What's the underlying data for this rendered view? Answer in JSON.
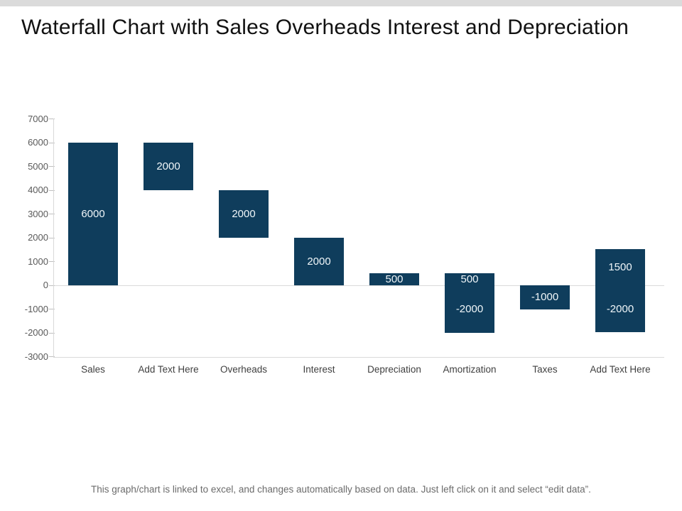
{
  "page": {
    "title": "Waterfall Chart with Sales Overheads Interest and Depreciation",
    "footer_note": "This graph/chart is linked to excel, and changes automatically based on data. Just left click on it and select “edit data”."
  },
  "chart_data": {
    "type": "bar",
    "subtype": "waterfall",
    "title": "Waterfall Chart with Sales Overheads Interest and Depreciation",
    "categories": [
      "Sales",
      "Add Text Here",
      "Overheads",
      "Interest",
      "Depreciation",
      "Amortization",
      "Taxes",
      "Add Text Here"
    ],
    "bars": [
      {
        "category": "Sales",
        "segments": [
          {
            "label": "6000",
            "from": 0,
            "to": 6000
          }
        ]
      },
      {
        "category": "Add Text Here",
        "segments": [
          {
            "label": "2000",
            "from": 4000,
            "to": 6000
          }
        ]
      },
      {
        "category": "Overheads",
        "segments": [
          {
            "label": "2000",
            "from": 2000,
            "to": 4000
          }
        ]
      },
      {
        "category": "Interest",
        "segments": [
          {
            "label": "2000",
            "from": 0,
            "to": 2000
          }
        ]
      },
      {
        "category": "Depreciation",
        "segments": [
          {
            "label": "500",
            "from": 0,
            "to": 500
          }
        ]
      },
      {
        "category": "Amortization",
        "segments": [
          {
            "label": "500",
            "from": 0,
            "to": 500
          },
          {
            "label": "-2000",
            "from": -2000,
            "to": 0
          }
        ]
      },
      {
        "category": "Taxes",
        "segments": [
          {
            "label": "-1000",
            "from": -1000,
            "to": 0
          }
        ]
      },
      {
        "category": "Add Text Here",
        "segments": [
          {
            "label": "1500",
            "from": 0,
            "to": 1500
          },
          {
            "label": "-2000",
            "from": -2000,
            "to": 0
          }
        ]
      }
    ],
    "y_axis": {
      "min": -3000,
      "max": 7000,
      "step": 1000,
      "tick_labels": [
        "7000",
        "6000",
        "5000",
        "4000",
        "3000",
        "2000",
        "1000",
        "0",
        "-1000",
        "-2000",
        "-3000"
      ]
    },
    "grid": "zero-line-only",
    "legend": "none",
    "bar_color": "#0f3d5c",
    "bar_label_color": "#f0f6f9",
    "axis_line_color": "#d9d9d9",
    "tick_mark_color": "#bfbfbf",
    "ytick_label_color": "#595959",
    "category_label_color": "#404040"
  }
}
